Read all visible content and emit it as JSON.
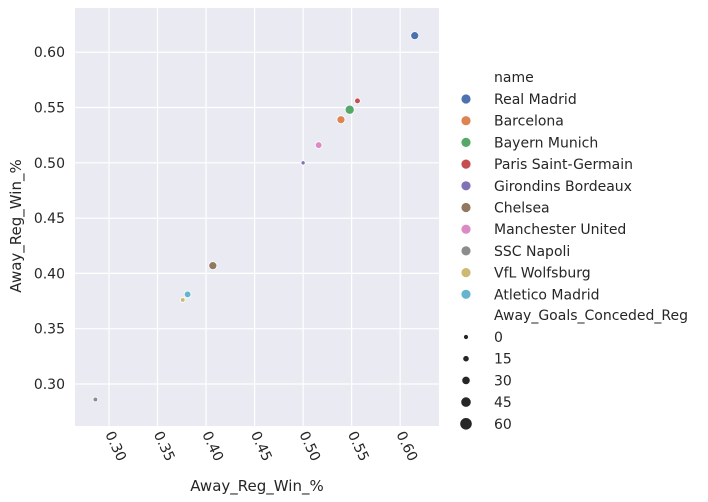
{
  "chart_data": {
    "type": "scatter",
    "title": "",
    "xlabel": "Away_Reg_Win_%",
    "ylabel": "Away_Reg_Win_%",
    "xlim": [
      0.265,
      0.64
    ],
    "ylim": [
      0.262,
      0.64
    ],
    "xticks": [
      "0.30",
      "0.35",
      "0.40",
      "0.45",
      "0.50",
      "0.55",
      "0.60"
    ],
    "yticks": [
      "0.30",
      "0.35",
      "0.40",
      "0.45",
      "0.50",
      "0.55",
      "0.60"
    ],
    "grid": true,
    "legend_position": "right",
    "hue_title": "name",
    "size_title": "Away_Goals_Conceded_Reg",
    "size_legend": [
      "0",
      "15",
      "30",
      "45",
      "60"
    ],
    "series": [
      {
        "name": "Real Madrid",
        "color": "#4c72b0",
        "x": 0.615,
        "y": 0.615,
        "size": 45
      },
      {
        "name": "Barcelona",
        "color": "#dd8452",
        "x": 0.539,
        "y": 0.539,
        "size": 45
      },
      {
        "name": "Bayern Munich",
        "color": "#55a868",
        "x": 0.548,
        "y": 0.548,
        "size": 60
      },
      {
        "name": "Paris Saint-Germain",
        "color": "#c44e52",
        "x": 0.556,
        "y": 0.556,
        "size": 20
      },
      {
        "name": "Girondins Bordeaux",
        "color": "#8172b3",
        "x": 0.5,
        "y": 0.5,
        "size": 8
      },
      {
        "name": "Chelsea",
        "color": "#937860",
        "x": 0.407,
        "y": 0.407,
        "size": 45
      },
      {
        "name": "Manchester United",
        "color": "#da8bc3",
        "x": 0.516,
        "y": 0.516,
        "size": 30
      },
      {
        "name": "SSC Napoli",
        "color": "#8c8c8c",
        "x": 0.286,
        "y": 0.286,
        "size": 12
      },
      {
        "name": "VfL Wolfsburg",
        "color": "#ccb974",
        "x": 0.376,
        "y": 0.376,
        "size": 12
      },
      {
        "name": "Atletico Madrid",
        "color": "#64b5cd",
        "x": 0.381,
        "y": 0.381,
        "size": 30
      }
    ]
  }
}
